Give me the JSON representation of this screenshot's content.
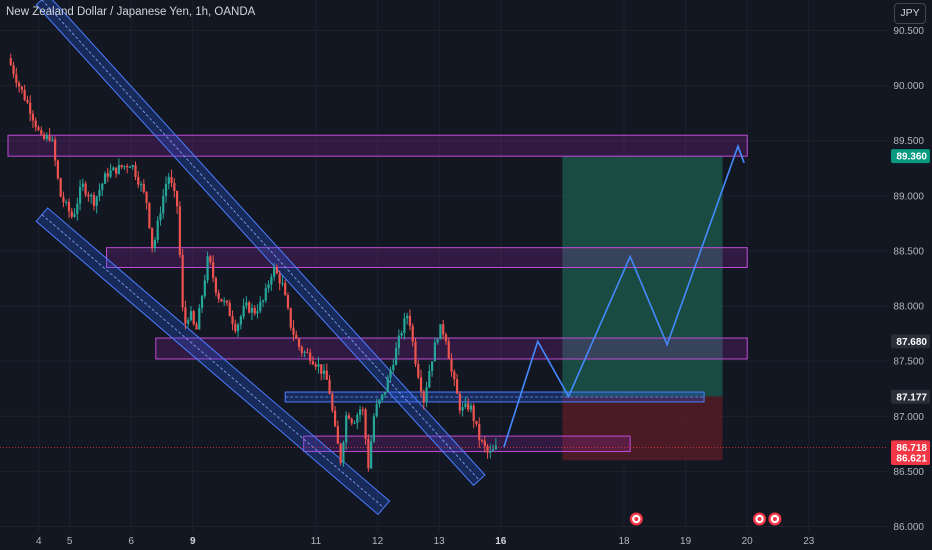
{
  "title": "New Zealand Dollar / Japanese Yen, 1h, OANDA",
  "currency_button": "JPY",
  "colors": {
    "background": "#131722",
    "up": "#26a69a",
    "down": "#ef5350",
    "zone": "#9c27b0",
    "channel": "#2962ff",
    "projection": "#448aff",
    "target_fill": "#1e5e4e",
    "stop_fill": "#5e1e26"
  },
  "chart_data": {
    "type": "candlestick",
    "ylim": [
      85.95,
      90.65
    ],
    "y_ticks": [
      "90.500",
      "90.000",
      "89.500",
      "89.000",
      "88.500",
      "88.000",
      "87.500",
      "87.000",
      "86.500",
      "86.000"
    ],
    "x_ticks": [
      {
        "label": "4",
        "x": 0.5
      },
      {
        "label": "5",
        "x": 1
      },
      {
        "label": "6",
        "x": 2
      },
      {
        "label": "9",
        "x": 3
      },
      {
        "label": "11",
        "x": 5
      },
      {
        "label": "12",
        "x": 6
      },
      {
        "label": "13",
        "x": 7
      },
      {
        "label": "16",
        "x": 8
      },
      {
        "label": "18",
        "x": 10
      },
      {
        "label": "19",
        "x": 11
      },
      {
        "label": "20",
        "x": 12
      },
      {
        "label": "23",
        "x": 13
      }
    ],
    "price_badges": [
      {
        "label": "89.360",
        "value": 89.36,
        "color": "#089981"
      },
      {
        "label": "87.680",
        "value": 87.68,
        "color": "#2a2e39"
      },
      {
        "label": "87.177",
        "value": 87.177,
        "color": "#2a2e39"
      },
      {
        "label": "86.718",
        "value": 86.718,
        "color": "#f23645"
      },
      {
        "label": "86.621",
        "value": 86.621,
        "color": "#f23645"
      }
    ],
    "price_path": [
      [
        0.0,
        90.25
      ],
      [
        0.18,
        90.0
      ],
      [
        0.35,
        89.8
      ],
      [
        0.55,
        89.5
      ],
      [
        0.7,
        89.55
      ],
      [
        0.85,
        89.0
      ],
      [
        1.05,
        88.8
      ],
      [
        1.2,
        89.1
      ],
      [
        1.4,
        88.95
      ],
      [
        1.6,
        89.2
      ],
      [
        1.8,
        89.25
      ],
      [
        2.0,
        89.3
      ],
      [
        2.15,
        89.1
      ],
      [
        2.25,
        88.95
      ],
      [
        2.35,
        88.5
      ],
      [
        2.5,
        88.95
      ],
      [
        2.6,
        89.2
      ],
      [
        2.75,
        88.9
      ],
      [
        2.85,
        87.8
      ],
      [
        2.95,
        87.95
      ],
      [
        3.05,
        87.75
      ],
      [
        3.15,
        88.1
      ],
      [
        3.25,
        88.45
      ],
      [
        3.4,
        88.1
      ],
      [
        3.55,
        88.0
      ],
      [
        3.7,
        87.8
      ],
      [
        3.85,
        88.0
      ],
      [
        4.0,
        87.95
      ],
      [
        4.15,
        88.05
      ],
      [
        4.3,
        88.35
      ],
      [
        4.45,
        88.2
      ],
      [
        4.6,
        87.8
      ],
      [
        4.75,
        87.6
      ],
      [
        4.9,
        87.55
      ],
      [
        5.05,
        87.45
      ],
      [
        5.2,
        87.3
      ],
      [
        5.3,
        86.9
      ],
      [
        5.4,
        86.6
      ],
      [
        5.5,
        87.05
      ],
      [
        5.6,
        86.95
      ],
      [
        5.75,
        87.1
      ],
      [
        5.85,
        86.55
      ],
      [
        5.95,
        87.05
      ],
      [
        6.1,
        87.2
      ],
      [
        6.25,
        87.5
      ],
      [
        6.4,
        87.8
      ],
      [
        6.5,
        87.95
      ],
      [
        6.6,
        87.55
      ],
      [
        6.75,
        87.15
      ],
      [
        6.85,
        87.45
      ],
      [
        7.0,
        87.8
      ],
      [
        7.1,
        87.75
      ],
      [
        7.2,
        87.4
      ],
      [
        7.35,
        87.05
      ],
      [
        7.5,
        87.1
      ],
      [
        7.65,
        86.8
      ],
      [
        7.8,
        86.65
      ],
      [
        7.95,
        86.72
      ]
    ],
    "zones": [
      {
        "x0": 0.0,
        "x1": 12.0,
        "y0": 89.36,
        "y1": 89.55
      },
      {
        "x0": 1.6,
        "x1": 12.0,
        "y0": 88.35,
        "y1": 88.53
      },
      {
        "x0": 2.4,
        "x1": 12.0,
        "y0": 87.52,
        "y1": 87.71
      },
      {
        "x0": 4.8,
        "x1": 10.1,
        "y0": 86.68,
        "y1": 86.82
      }
    ],
    "support_band": {
      "x0": 4.5,
      "x1": 11.3,
      "y0": 87.13,
      "y1": 87.22
    },
    "channels": [
      {
        "x0": 0.55,
        "y0": 90.78,
        "x1": 7.65,
        "y1": 86.42,
        "w": 0.14
      },
      {
        "x0": 0.55,
        "y0": 88.83,
        "x1": 6.1,
        "y1": 86.17,
        "w": 0.16
      }
    ],
    "position": {
      "x0": 9.0,
      "x1": 11.6,
      "entry": 87.18,
      "target": 89.36,
      "stop": 86.6
    },
    "projection": [
      [
        8.05,
        86.72
      ],
      [
        8.6,
        87.68
      ],
      [
        9.1,
        87.18
      ],
      [
        10.1,
        88.45
      ],
      [
        10.7,
        87.65
      ],
      [
        11.85,
        89.45
      ],
      [
        11.95,
        89.3
      ]
    ],
    "event_markers": [
      10.2,
      12.2,
      12.45
    ]
  }
}
